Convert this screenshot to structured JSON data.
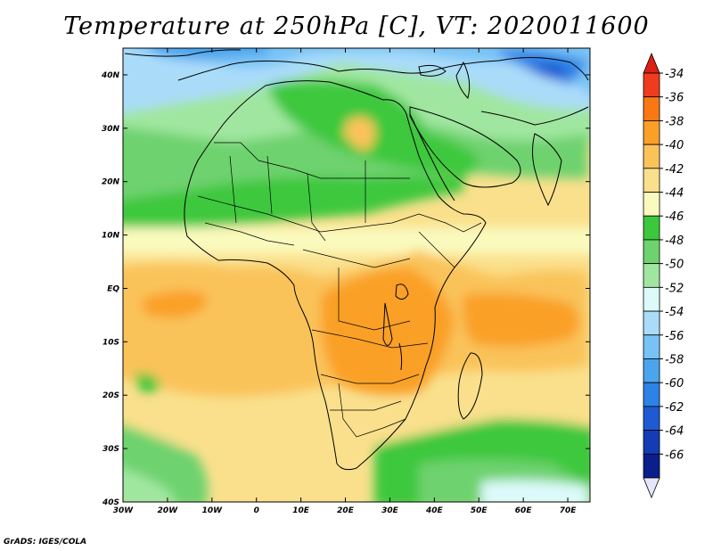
{
  "title": "Temperature at 250hPa [C], VT: 2020011600",
  "credit": "GrADS: IGES/COLA",
  "map": {
    "lat_ticks": [
      "40N",
      "30N",
      "20N",
      "10N",
      "EQ",
      "10S",
      "20S",
      "30S",
      "40S"
    ],
    "lon_ticks": [
      "30W",
      "20W",
      "10W",
      "0",
      "10E",
      "20E",
      "30E",
      "40E",
      "50E",
      "60E",
      "70E"
    ],
    "lon_range": [
      -30,
      75
    ],
    "lat_range": [
      -40,
      45
    ]
  },
  "colorbar": {
    "labels": [
      "-34",
      "-36",
      "-38",
      "-40",
      "-42",
      "-44",
      "-46",
      "-48",
      "-50",
      "-52",
      "-54",
      "-56",
      "-58",
      "-60",
      "-62",
      "-64",
      "-66"
    ],
    "colors": [
      "#f03c1e",
      "#fa7814",
      "#faa028",
      "#fac35a",
      "#fae08c",
      "#fafabe",
      "#3cc83c",
      "#6ed26e",
      "#a0e6a0",
      "#dcfafa",
      "#aadcfa",
      "#78c3f5",
      "#4ba5ee",
      "#2d82e6",
      "#1e5ad2",
      "#143cb4",
      "#0a1e8c"
    ],
    "top_triangle_color": "#dc1e14",
    "bottom_triangle_color": "#e6e6fa"
  }
}
